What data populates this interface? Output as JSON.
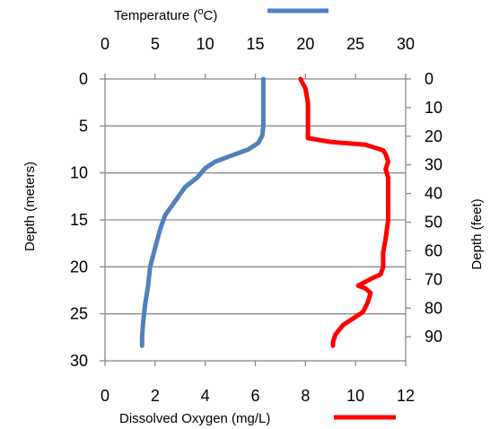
{
  "chart_data": {
    "type": "line",
    "title": "",
    "axes": {
      "left": {
        "label": "Depth (meters)",
        "range": [
          0,
          30
        ],
        "ticks": [
          0,
          5,
          10,
          15,
          20,
          25,
          30
        ],
        "inverted": true
      },
      "right": {
        "label": "Depth (feet)",
        "range": [
          0,
          98.4
        ],
        "ticks": [
          0,
          10,
          20,
          30,
          40,
          50,
          60,
          70,
          80,
          90
        ],
        "inverted": true
      },
      "top": {
        "label": "Temperature (°C)",
        "range": [
          0,
          30
        ],
        "ticks": [
          0,
          5,
          10,
          15,
          20,
          25,
          30
        ]
      },
      "bottom": {
        "label": "Dissolved Oxygen (mg/L)",
        "range": [
          0,
          12
        ],
        "ticks": [
          0,
          2,
          4,
          6,
          8,
          10,
          12
        ]
      }
    },
    "grid": {
      "horizontal": true,
      "vertical": false
    },
    "series": [
      {
        "name": "Temperature (°C)",
        "label_parts": [
          "Temperature (",
          "o",
          "C)"
        ],
        "axis": "top",
        "color": "#4f81bd",
        "points": [
          [
            15.8,
            0.0
          ],
          [
            15.8,
            2.5
          ],
          [
            15.8,
            5.0
          ],
          [
            15.7,
            6.0
          ],
          [
            15.3,
            6.8
          ],
          [
            14.3,
            7.5
          ],
          [
            12.5,
            8.2
          ],
          [
            11.0,
            8.8
          ],
          [
            10.0,
            9.5
          ],
          [
            9.2,
            10.5
          ],
          [
            8.0,
            11.5
          ],
          [
            7.0,
            13.0
          ],
          [
            6.0,
            14.5
          ],
          [
            5.5,
            16.0
          ],
          [
            5.0,
            18.0
          ],
          [
            4.5,
            20.0
          ],
          [
            4.3,
            22.0
          ],
          [
            4.0,
            24.0
          ],
          [
            3.8,
            26.0
          ],
          [
            3.7,
            27.5
          ],
          [
            3.7,
            28.4
          ]
        ]
      },
      {
        "name": "Dissolved Oxygen (mg/L)",
        "label_parts": [
          "Dissolved Oxygen (mg/L)"
        ],
        "axis": "bottom",
        "color": "#ff0000",
        "points": [
          [
            7.8,
            0.0
          ],
          [
            8.0,
            1.0
          ],
          [
            8.1,
            2.5
          ],
          [
            8.1,
            5.0
          ],
          [
            8.1,
            6.3
          ],
          [
            9.0,
            6.7
          ],
          [
            10.4,
            7.0
          ],
          [
            11.1,
            7.6
          ],
          [
            11.2,
            8.0
          ],
          [
            11.3,
            8.8
          ],
          [
            11.2,
            9.6
          ],
          [
            11.3,
            10.5
          ],
          [
            11.3,
            12.5
          ],
          [
            11.3,
            15.0
          ],
          [
            11.2,
            17.0
          ],
          [
            11.1,
            18.5
          ],
          [
            11.1,
            20.0
          ],
          [
            11.0,
            20.8
          ],
          [
            10.6,
            21.3
          ],
          [
            10.1,
            22.0
          ],
          [
            10.4,
            22.3
          ],
          [
            10.6,
            22.8
          ],
          [
            10.5,
            23.7
          ],
          [
            10.3,
            24.8
          ],
          [
            9.9,
            25.5
          ],
          [
            9.5,
            26.2
          ],
          [
            9.2,
            27.2
          ],
          [
            9.1,
            28.0
          ],
          [
            9.1,
            28.4
          ]
        ]
      }
    ]
  }
}
